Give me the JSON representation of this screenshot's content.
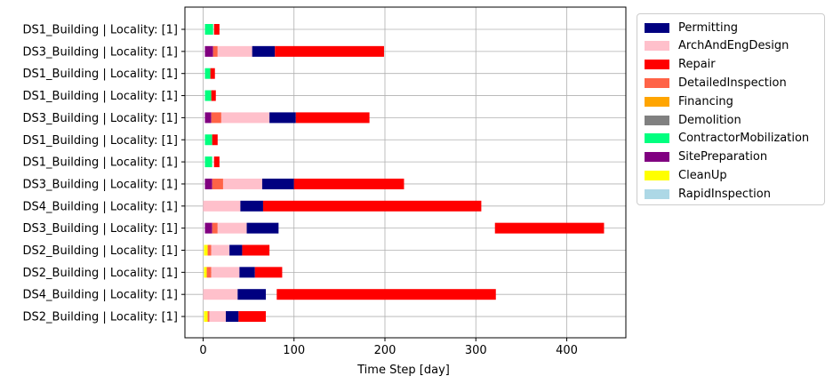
{
  "chart_data": {
    "type": "bar",
    "orientation": "horizontal",
    "xlabel": "Time Step [day]",
    "xlim": [
      -20,
      465
    ],
    "xticks": [
      0,
      100,
      200,
      300,
      400
    ],
    "grid": true,
    "legend_position": "outside-right",
    "categories": [
      "DS1_Building | Locality: [1]",
      "DS3_Building | Locality: [1]",
      "DS1_Building | Locality: [1]",
      "DS1_Building | Locality: [1]",
      "DS3_Building | Locality: [1]",
      "DS1_Building | Locality: [1]",
      "DS1_Building | Locality: [1]",
      "DS3_Building | Locality: [1]",
      "DS4_Building | Locality: [1]",
      "DS3_Building | Locality: [1]",
      "DS2_Building | Locality: [1]",
      "DS2_Building | Locality: [1]",
      "DS4_Building | Locality: [1]",
      "DS2_Building | Locality: [1]"
    ],
    "series": [
      {
        "name": "Permitting",
        "color": "#000080"
      },
      {
        "name": "ArchAndEngDesign",
        "color": "#ffc0cb"
      },
      {
        "name": "Repair",
        "color": "#ff0000"
      },
      {
        "name": "DetailedInspection",
        "color": "#ff6347"
      },
      {
        "name": "Financing",
        "color": "#ffa500"
      },
      {
        "name": "Demolition",
        "color": "#808080"
      },
      {
        "name": "ContractorMobilization",
        "color": "#00ff7f"
      },
      {
        "name": "SitePreparation",
        "color": "#800080"
      },
      {
        "name": "CleanUp",
        "color": "#ffff00"
      },
      {
        "name": "RapidInspection",
        "color": "#add8e6"
      }
    ],
    "rows": [
      [
        {
          "phase": "ContractorMobilization",
          "start": 2,
          "end": 11
        },
        {
          "phase": "Repair",
          "start": 12,
          "end": 18
        }
      ],
      [
        {
          "phase": "SitePreparation",
          "start": 2,
          "end": 11
        },
        {
          "phase": "DetailedInspection",
          "start": 11,
          "end": 16
        },
        {
          "phase": "ArchAndEngDesign",
          "start": 16,
          "end": 54
        },
        {
          "phase": "Permitting",
          "start": 54,
          "end": 79
        },
        {
          "phase": "Repair",
          "start": 79,
          "end": 199
        }
      ],
      [
        {
          "phase": "ContractorMobilization",
          "start": 2,
          "end": 8
        },
        {
          "phase": "Repair",
          "start": 8,
          "end": 13
        }
      ],
      [
        {
          "phase": "ContractorMobilization",
          "start": 2,
          "end": 9
        },
        {
          "phase": "Repair",
          "start": 9,
          "end": 14
        }
      ],
      [
        {
          "phase": "SitePreparation",
          "start": 2,
          "end": 9
        },
        {
          "phase": "DetailedInspection",
          "start": 9,
          "end": 20
        },
        {
          "phase": "ArchAndEngDesign",
          "start": 20,
          "end": 73
        },
        {
          "phase": "Permitting",
          "start": 73,
          "end": 102
        },
        {
          "phase": "Repair",
          "start": 102,
          "end": 183
        }
      ],
      [
        {
          "phase": "ContractorMobilization",
          "start": 2,
          "end": 10
        },
        {
          "phase": "Repair",
          "start": 10,
          "end": 16
        }
      ],
      [
        {
          "phase": "ContractorMobilization",
          "start": 2,
          "end": 10
        },
        {
          "phase": "Repair",
          "start": 12,
          "end": 18
        }
      ],
      [
        {
          "phase": "SitePreparation",
          "start": 2,
          "end": 10
        },
        {
          "phase": "DetailedInspection",
          "start": 10,
          "end": 22
        },
        {
          "phase": "ArchAndEngDesign",
          "start": 22,
          "end": 65
        },
        {
          "phase": "Permitting",
          "start": 65,
          "end": 100
        },
        {
          "phase": "Repair",
          "start": 100,
          "end": 221
        }
      ],
      [
        {
          "phase": "ArchAndEngDesign",
          "start": 0,
          "end": 41
        },
        {
          "phase": "Permitting",
          "start": 41,
          "end": 66
        },
        {
          "phase": "Repair",
          "start": 66,
          "end": 306
        }
      ],
      [
        {
          "phase": "SitePreparation",
          "start": 2,
          "end": 10
        },
        {
          "phase": "DetailedInspection",
          "start": 10,
          "end": 16
        },
        {
          "phase": "ArchAndEngDesign",
          "start": 16,
          "end": 48
        },
        {
          "phase": "Permitting",
          "start": 48,
          "end": 83
        },
        {
          "phase": "Repair",
          "start": 321,
          "end": 441
        }
      ],
      [
        {
          "phase": "CleanUp",
          "start": 1,
          "end": 5
        },
        {
          "phase": "DetailedInspection",
          "start": 5,
          "end": 9
        },
        {
          "phase": "ArchAndEngDesign",
          "start": 9,
          "end": 29
        },
        {
          "phase": "Permitting",
          "start": 29,
          "end": 43
        },
        {
          "phase": "Repair",
          "start": 43,
          "end": 73
        }
      ],
      [
        {
          "phase": "CleanUp",
          "start": 1,
          "end": 4
        },
        {
          "phase": "DetailedInspection",
          "start": 4,
          "end": 9
        },
        {
          "phase": "ArchAndEngDesign",
          "start": 9,
          "end": 40
        },
        {
          "phase": "Permitting",
          "start": 40,
          "end": 57
        },
        {
          "phase": "Repair",
          "start": 57,
          "end": 87
        }
      ],
      [
        {
          "phase": "ArchAndEngDesign",
          "start": 0,
          "end": 38
        },
        {
          "phase": "Permitting",
          "start": 38,
          "end": 69
        },
        {
          "phase": "Repair",
          "start": 81,
          "end": 322
        }
      ],
      [
        {
          "phase": "CleanUp",
          "start": 1,
          "end": 5
        },
        {
          "phase": "DetailedInspection",
          "start": 5,
          "end": 7
        },
        {
          "phase": "ArchAndEngDesign",
          "start": 7,
          "end": 25
        },
        {
          "phase": "Permitting",
          "start": 25,
          "end": 39
        },
        {
          "phase": "Repair",
          "start": 39,
          "end": 69
        }
      ]
    ]
  }
}
